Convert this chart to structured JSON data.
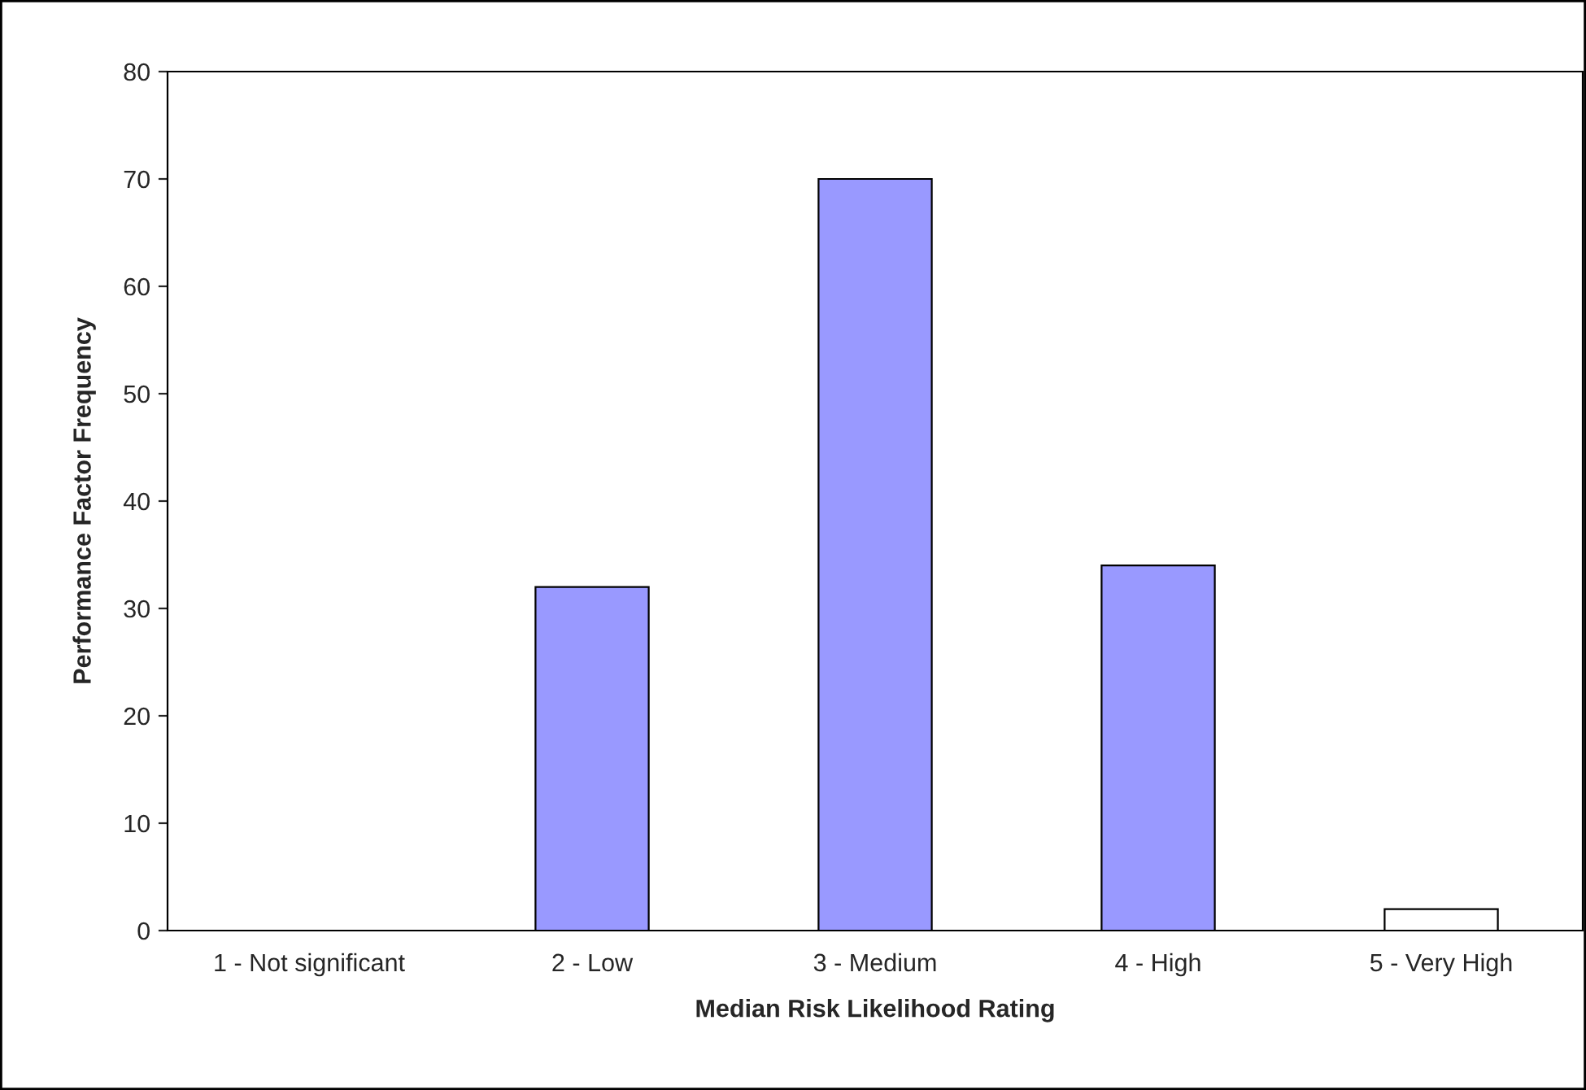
{
  "chart_data": {
    "type": "bar",
    "xlabel": "Median Risk Likelihood Rating",
    "ylabel": "Performance Factor Frequency",
    "categories": [
      "1 - Not significant",
      "2 - Low",
      "3 - Medium",
      "4 - High",
      "5 - Very High"
    ],
    "values": [
      0,
      32,
      70,
      34,
      2
    ],
    "colors": [
      "#9999ff",
      "#9999ff",
      "#9999ff",
      "#9999ff",
      "#ffffff"
    ],
    "ylim": [
      0,
      80
    ],
    "yticks": [
      0,
      10,
      20,
      30,
      40,
      50,
      60,
      70,
      80
    ],
    "grid": false,
    "legend": false
  }
}
